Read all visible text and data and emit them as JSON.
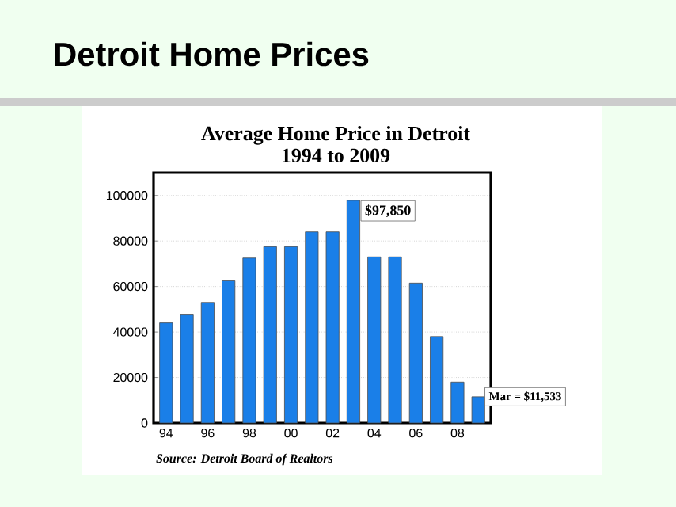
{
  "chart_data": {
    "type": "bar",
    "title": "Average Home Price in Detroit",
    "subtitle": "1994 to 2009",
    "categories": [
      "94",
      null,
      "96",
      null,
      "98",
      null,
      "00",
      null,
      "02",
      null,
      "04",
      null,
      "06",
      null,
      "08",
      null
    ],
    "values": [
      44000,
      47500,
      53000,
      62500,
      72500,
      77500,
      77500,
      84000,
      84000,
      97850,
      73000,
      73000,
      61500,
      38000,
      18000,
      11533
    ],
    "color": "#1a7fe8",
    "ylim": [
      0,
      110000
    ],
    "yticks": [
      0,
      20000,
      40000,
      60000,
      80000,
      100000
    ],
    "grid": "y",
    "annotations": [
      "Detroit Home Prices",
      "$97,850",
      "Mar = $11,533",
      "Source: Detroit Board of Realtors"
    ]
  }
}
